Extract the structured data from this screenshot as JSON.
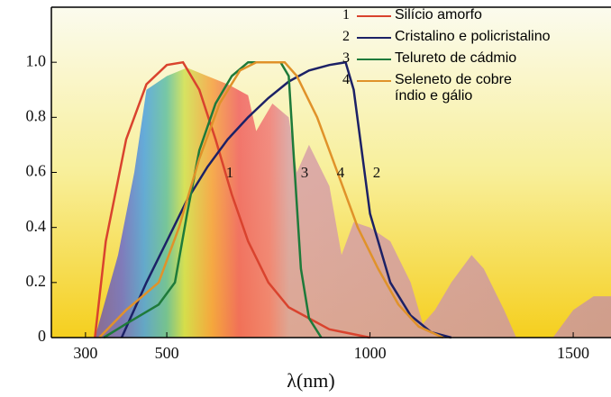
{
  "chart_data": {
    "type": "line",
    "xlabel": "λ(nm)",
    "xlim": [
      216,
      1593
    ],
    "xticks": [
      300,
      500,
      1000,
      1500
    ],
    "ylim": [
      0,
      1.2
    ],
    "yticks": [
      0,
      0.2,
      0.4,
      0.6,
      0.8,
      {
        "value": 1.0,
        "label": "1.0"
      }
    ],
    "spectrum": {
      "color": "#c9959c",
      "x": [
        323,
        380,
        420,
        450,
        500,
        550,
        600,
        650,
        700,
        720,
        760,
        800,
        820,
        850,
        900,
        930,
        960,
        1000,
        1050,
        1100,
        1130,
        1160,
        1200,
        1250,
        1280,
        1330,
        1360,
        1450,
        1500,
        1550,
        1593
      ],
      "values": [
        0,
        0.3,
        0.6,
        0.9,
        0.95,
        0.98,
        0.95,
        0.92,
        0.88,
        0.75,
        0.85,
        0.8,
        0.6,
        0.7,
        0.55,
        0.3,
        0.42,
        0.4,
        0.35,
        0.2,
        0.05,
        0.1,
        0.2,
        0.3,
        0.25,
        0.1,
        0,
        0,
        0.1,
        0.15,
        0.15
      ]
    },
    "series": [
      {
        "label": "1",
        "name": "Silício amorfo",
        "color": "#d9432e",
        "x": [
          323,
          350,
          400,
          450,
          500,
          540,
          580,
          620,
          660,
          700,
          750,
          800,
          900,
          1000
        ],
        "values": [
          0,
          0.35,
          0.72,
          0.92,
          0.99,
          1.0,
          0.9,
          0.72,
          0.52,
          0.35,
          0.2,
          0.11,
          0.03,
          0
        ]
      },
      {
        "label": "2",
        "name": "Cristalino e policristalino",
        "color": "#1c2166",
        "x": [
          389,
          450,
          500,
          550,
          600,
          650,
          700,
          750,
          800,
          850,
          900,
          940,
          960,
          1000,
          1050,
          1100,
          1150,
          1200
        ],
        "values": [
          0,
          0.2,
          0.35,
          0.5,
          0.62,
          0.72,
          0.8,
          0.87,
          0.93,
          0.97,
          0.99,
          1.0,
          0.9,
          0.45,
          0.2,
          0.08,
          0.02,
          0
        ]
      },
      {
        "label": "3",
        "name": "Telureto de cádmio",
        "color": "#1e7a3a",
        "x": [
          345,
          400,
          480,
          520,
          550,
          580,
          620,
          660,
          700,
          780,
          800,
          815,
          830,
          850,
          880
        ],
        "values": [
          0,
          0.05,
          0.12,
          0.2,
          0.45,
          0.68,
          0.85,
          0.95,
          1.0,
          1.0,
          0.95,
          0.6,
          0.25,
          0.07,
          0
        ]
      },
      {
        "label": "4",
        "name": "Seleneto de cobre índio e gálio",
        "color": "#e0922a",
        "x": [
          334,
          400,
          480,
          530,
          580,
          630,
          680,
          720,
          790,
          820,
          870,
          920,
          970,
          1020,
          1070,
          1120,
          1180
        ],
        "values": [
          0,
          0.1,
          0.2,
          0.4,
          0.65,
          0.85,
          0.97,
          1.0,
          1.0,
          0.95,
          0.8,
          0.6,
          0.4,
          0.25,
          0.12,
          0.04,
          0
        ]
      }
    ]
  }
}
